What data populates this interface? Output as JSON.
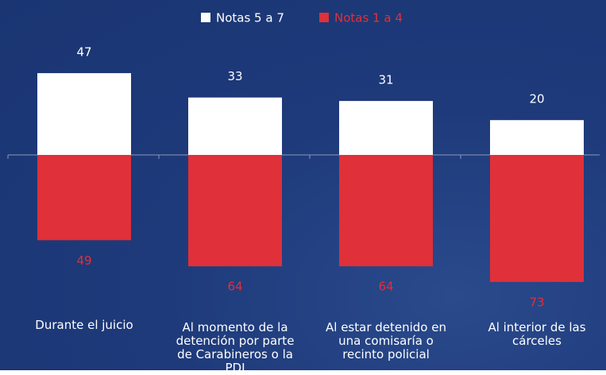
{
  "chart_data": {
    "type": "diverging_bar",
    "categories": [
      "Durante el juicio",
      "Al momento de la detención por parte de Carabineros o la PDI",
      "Al estar detenido en una comisaría o recinto policial",
      "Al interior de las cárceles"
    ],
    "series": [
      {
        "name": "Notas 5 a 7",
        "color": "#ffffff",
        "direction": "up",
        "values": [
          47,
          33,
          31,
          20
        ]
      },
      {
        "name": "Notas 1 a 4",
        "color": "#e0303a",
        "direction": "down",
        "values": [
          49,
          64,
          64,
          73
        ]
      }
    ],
    "legend": "top"
  }
}
